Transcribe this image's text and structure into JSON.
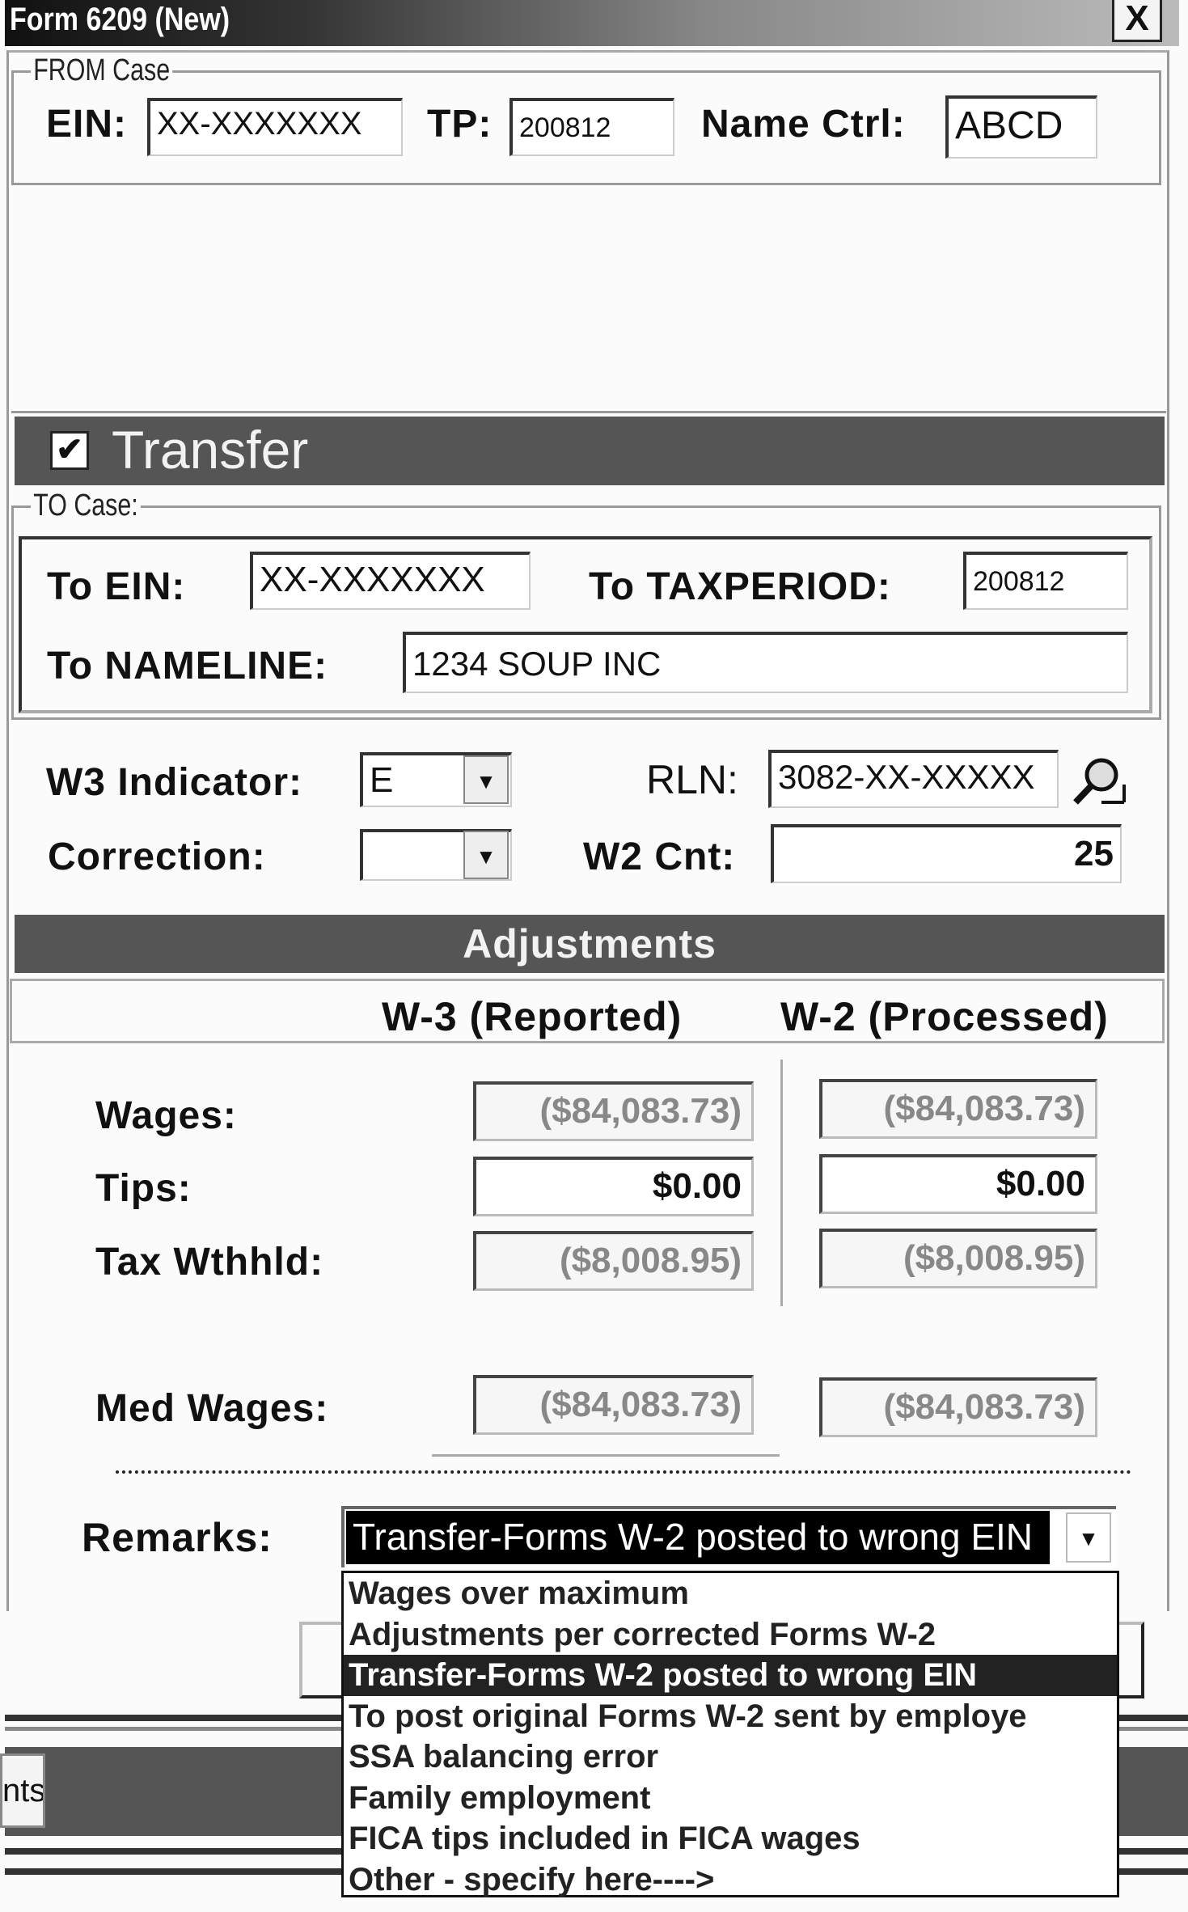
{
  "window": {
    "title": "Form 6209 (New)",
    "close_label": "X"
  },
  "from_case": {
    "legend": "FROM Case",
    "ein_label": "EIN:",
    "ein_value": "XX-XXXXXXX",
    "tp_label": "TP:",
    "tp_value": "200812",
    "name_ctrl_label": "Name Ctrl:",
    "name_ctrl_value": "ABCD"
  },
  "transfer": {
    "label": "Transfer",
    "checked": true
  },
  "to_case": {
    "legend": "TO Case:",
    "to_ein_label": "To EIN:",
    "to_ein_value": "XX-XXXXXXX",
    "to_taxperiod_label": "To TAXPERIOD:",
    "to_taxperiod_value": "200812",
    "to_nameline_label": "To NAMELINE:",
    "to_nameline_value": "1234 SOUP INC"
  },
  "indicators": {
    "w3_label": "W3 Indicator:",
    "w3_value": "E",
    "rln_label": "RLN:",
    "rln_value": "3082-XX-XXXXX",
    "correction_label": "Correction:",
    "correction_value": "",
    "w2cnt_label": "W2 Cnt:",
    "w2cnt_value": "25"
  },
  "adjustments": {
    "title": "Adjustments",
    "col_w3": "W-3 (Reported)",
    "col_w2": "W-2 (Processed)",
    "rows": [
      {
        "label": "Wages:",
        "w3": "($84,083.73)",
        "w2": "($84,083.73)"
      },
      {
        "label": "Tips:",
        "w3": "$0.00",
        "w2": "$0.00"
      },
      {
        "label": "Tax Wthhld:",
        "w3": "($8,008.95)",
        "w2": "($8,008.95)"
      },
      {
        "label": "Med Wages:",
        "w3": "($84,083.73)",
        "w2": "($84,083.73)"
      }
    ]
  },
  "remarks": {
    "label": "Remarks:",
    "selected": "Transfer-Forms W-2 posted to wrong EIN",
    "options": [
      "Wages over maximum",
      "Adjustments per corrected Forms W-2",
      "Transfer-Forms W-2 posted to wrong EIN",
      "To post original Forms W-2 sent by employe",
      "SSA balancing error",
      "Family employment",
      "FICA tips included in FICA wages",
      "Other - specify here---->"
    ],
    "highlighted_index": 2
  },
  "background": {
    "tab_fragment": "nts"
  }
}
